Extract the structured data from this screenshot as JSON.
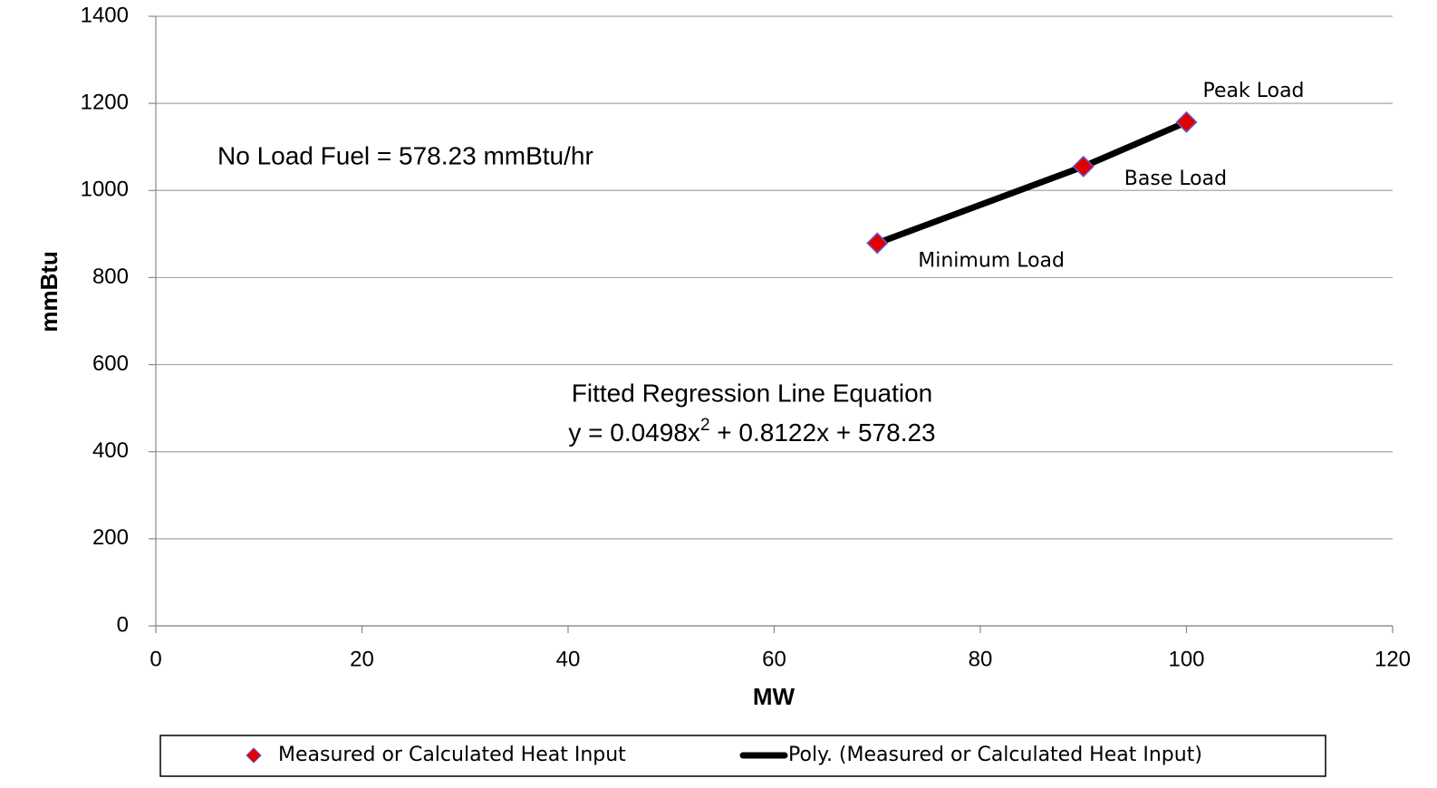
{
  "chart_data": {
    "type": "scatter",
    "xlabel": "MW",
    "ylabel": "mmBtu",
    "xlim": [
      0,
      120
    ],
    "xticks": [
      0,
      20,
      40,
      60,
      80,
      100,
      120
    ],
    "ylim": [
      0,
      1400
    ],
    "yticks": [
      0,
      200,
      400,
      600,
      800,
      1000,
      1200,
      1400
    ],
    "grid": true,
    "legend": "bottom",
    "series": [
      {
        "name": "Measured or Calculated Heat Input",
        "color": "#e00000",
        "marker": "diamond",
        "x": [
          70,
          90,
          100
        ],
        "values": [
          879,
          1055,
          1157
        ]
      },
      {
        "name": "Poly. (Measured or Calculated Heat Input)",
        "color": "#000000",
        "marker": "line",
        "x": [
          70,
          90,
          100
        ],
        "values": [
          879,
          1055,
          1157
        ]
      }
    ],
    "point_labels": [
      "Minimum Load",
      "Base Load",
      "Peak Load"
    ],
    "annotations": {
      "no_load": "No Load Fuel = 578.23 mmBtu/hr",
      "fit_title": "Fitted Regression Line Equation",
      "equation": [
        "y = 0.0498x",
        "2",
        " + 0.8122x + 578.23"
      ]
    }
  }
}
